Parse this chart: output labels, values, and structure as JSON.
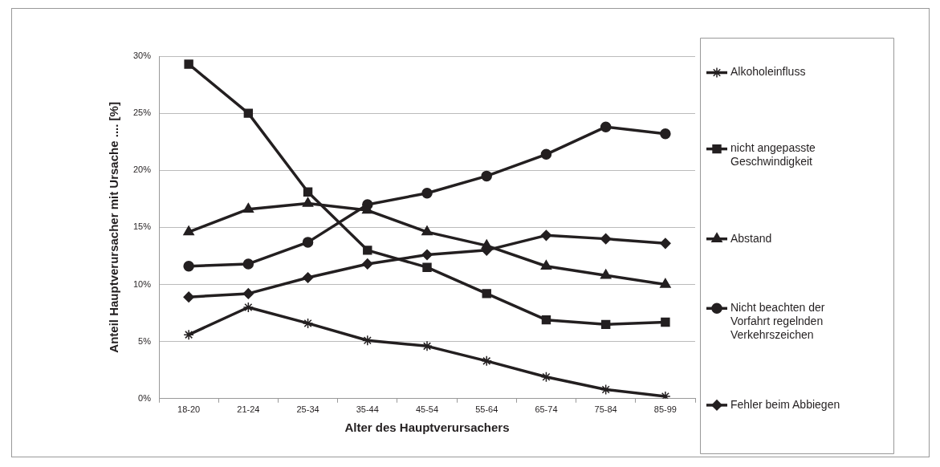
{
  "chart_data": {
    "type": "line",
    "xlabel": "Alter des Hauptverursachers",
    "ylabel": "Anteil Hauptverursacher mit Ursache .... [%]",
    "categories": [
      "18-20",
      "21-24",
      "25-34",
      "35-44",
      "45-54",
      "55-64",
      "65-74",
      "75-84",
      "85-99"
    ],
    "series": [
      {
        "name": "Alkoholeinfluss",
        "color": "#231f20",
        "marker": "cross",
        "values": [
          5.6,
          8.0,
          6.6,
          5.1,
          4.6,
          3.3,
          1.9,
          0.8,
          0.2
        ]
      },
      {
        "name": "nicht angepasste Geschwindigkeit",
        "color": "#231f20",
        "marker": "square",
        "values": [
          29.3,
          25.0,
          18.1,
          13.0,
          11.5,
          9.2,
          6.9,
          6.5,
          6.7
        ]
      },
      {
        "name": "Abstand",
        "color": "#231f20",
        "marker": "triangle",
        "values": [
          14.6,
          16.6,
          17.1,
          16.5,
          14.6,
          13.4,
          11.6,
          10.8,
          10.0
        ]
      },
      {
        "name": "Nicht beachten der Vorfahrt regelnden Verkehrszeichen",
        "color": "#231f20",
        "marker": "circle",
        "values": [
          11.6,
          11.8,
          13.7,
          17.0,
          18.0,
          19.5,
          21.4,
          23.8,
          23.2
        ]
      },
      {
        "name": "Fehler beim Abbiegen",
        "color": "#231f20",
        "marker": "diamond",
        "values": [
          8.9,
          9.2,
          10.6,
          11.8,
          12.6,
          13.0,
          14.3,
          14.0,
          13.6
        ]
      }
    ],
    "ylim": [
      0,
      30
    ],
    "yticks": [
      {
        "value": 0,
        "label": "0%"
      },
      {
        "value": 5,
        "label": "5%"
      },
      {
        "value": 10,
        "label": "10%"
      },
      {
        "value": 15,
        "label": "15%"
      },
      {
        "value": 20,
        "label": "20%"
      },
      {
        "value": 25,
        "label": "25%"
      },
      {
        "value": 30,
        "label": "30%"
      }
    ],
    "grid": "y",
    "legend": "right"
  }
}
